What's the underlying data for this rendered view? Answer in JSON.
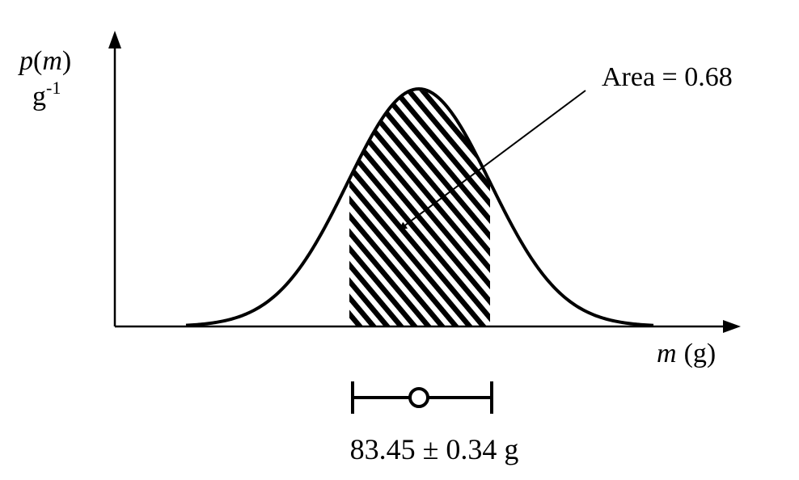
{
  "y_axis": {
    "symbol": "p",
    "open_paren": "(",
    "variable": "m",
    "close_paren": ")",
    "unit_base": "g",
    "unit_exponent": "-1"
  },
  "x_axis": {
    "variable": "m",
    "unit": "(g)"
  },
  "annotation": {
    "text": "Area = 0.68",
    "shaded_fraction": 0.68
  },
  "distribution": {
    "mean": 83.45,
    "sigma": 0.34
  },
  "result": {
    "text": "83.45 ± 0.34 g"
  },
  "colors": {
    "line": "#000000",
    "background": "#ffffff"
  }
}
